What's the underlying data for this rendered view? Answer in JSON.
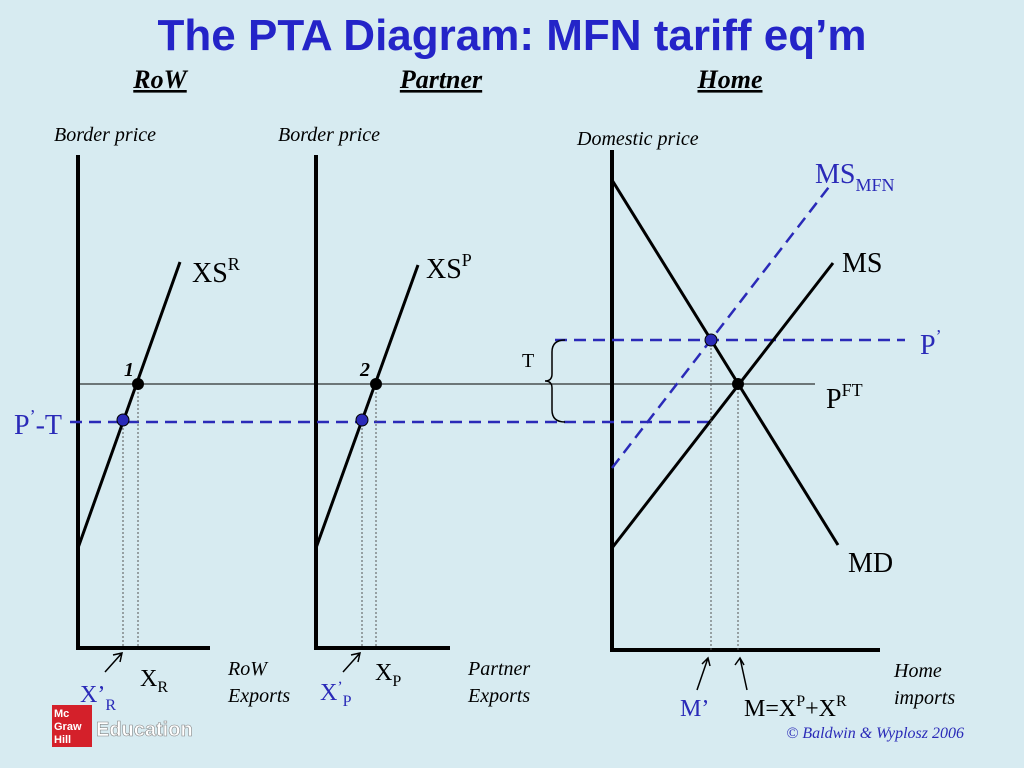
{
  "header": {
    "title": "The PTA Diagram: MFN tariff eq’m"
  },
  "panels": [
    {
      "heading": "RoW",
      "y_axis": "Border price",
      "x_axis": [
        "RoW",
        "Exports"
      ]
    },
    {
      "heading": "Partner",
      "y_axis": "Border price",
      "x_axis": [
        "Partner",
        "Exports"
      ]
    },
    {
      "heading": "Home",
      "y_axis": "Domestic price",
      "x_axis": [
        "Home",
        "imports"
      ]
    }
  ],
  "labels": {
    "xs_r": {
      "base": "XS",
      "sup": "R"
    },
    "xs_p": {
      "base": "XS",
      "sup": "P"
    },
    "ms_mfn": {
      "base": "MS",
      "sub": "MFN"
    },
    "ms": "MS",
    "md": "MD",
    "p_prime": {
      "base": "P",
      "sup": "’"
    },
    "p_ft": {
      "base": "P",
      "sup": "FT"
    },
    "p_prime_t": {
      "base": "P",
      "sup": "’",
      "rest": "-T"
    },
    "t": "T",
    "point_1": "1",
    "point_2": "2",
    "x_r": {
      "base": "X",
      "sub": "R"
    },
    "x_prime_r": {
      "base": "X’",
      "sub": "R"
    },
    "x_p": {
      "base": "X",
      "sub": "P"
    },
    "x_prime_p": {
      "base": "X",
      "sup": "’",
      "sub": "P"
    },
    "m_prime": "M’",
    "m_total": {
      "a": "M=X",
      "sup1": "P",
      "b": "+X",
      "sup2": "R"
    }
  },
  "footer": {
    "logo": [
      "Mc",
      "Graw",
      "Hill"
    ],
    "logo_text": "Education",
    "credit": "© Baldwin & Wyplosz 2006"
  }
}
